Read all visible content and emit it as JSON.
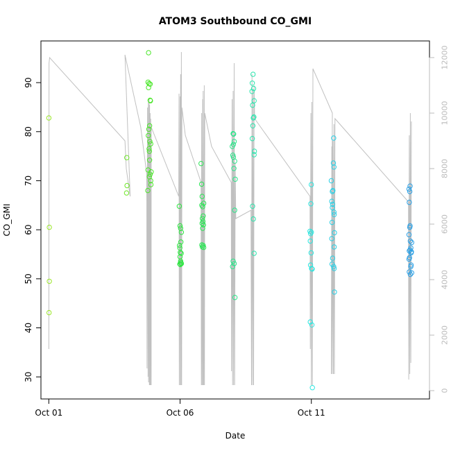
{
  "chart_data": {
    "type": "scatter",
    "title": "ATOM3 Southbound CO_GMI",
    "xlabel": "Date",
    "ylabel": "CO_GMI",
    "x_ticks": [
      "Oct 01",
      "Oct 06",
      "Oct 11"
    ],
    "y_ticks": [
      "30",
      "40",
      "50",
      "60",
      "70",
      "80",
      "90"
    ],
    "y2_ticks": [
      "0",
      "2000",
      "4000",
      "6000",
      "8000",
      "10000",
      "12000"
    ],
    "xlim": [
      -0.3,
      14.5
    ],
    "ylim": [
      25.5,
      98.5
    ],
    "y2lim": [
      -300,
      12600
    ],
    "grid": false,
    "colors": {
      "altitude_line": "#c0c0c0",
      "axis": "#000000",
      "right_axis": "#bbbbbb"
    },
    "points": [
      {
        "x": 0.0,
        "y": 82.8,
        "color": "#9be62a"
      },
      {
        "x": 0.02,
        "y": 60.5,
        "color": "#9be62a"
      },
      {
        "x": 0.02,
        "y": 49.5,
        "color": "#9be62a"
      },
      {
        "x": 0.01,
        "y": 43.1,
        "color": "#9be62a"
      },
      {
        "x": 2.97,
        "y": 74.7,
        "color": "#6fe62a"
      },
      {
        "x": 2.98,
        "y": 69.0,
        "color": "#6fe62a"
      },
      {
        "x": 2.96,
        "y": 67.5,
        "color": "#6fe62a"
      },
      {
        "x": 3.8,
        "y": 96.1,
        "color": "#4be62a"
      },
      {
        "x": 3.78,
        "y": 90.1,
        "color": "#4be62a"
      },
      {
        "x": 3.82,
        "y": 89.8,
        "color": "#4be62a"
      },
      {
        "x": 3.86,
        "y": 89.7,
        "color": "#4be62a"
      },
      {
        "x": 3.8,
        "y": 89.0,
        "color": "#4be62a"
      },
      {
        "x": 3.87,
        "y": 86.3,
        "color": "#4be62a"
      },
      {
        "x": 3.86,
        "y": 86.4,
        "color": "#4be62a"
      },
      {
        "x": 3.84,
        "y": 81.2,
        "color": "#4be62a"
      },
      {
        "x": 3.81,
        "y": 80.5,
        "color": "#4be62a"
      },
      {
        "x": 3.79,
        "y": 79.2,
        "color": "#4be62a"
      },
      {
        "x": 3.85,
        "y": 78.0,
        "color": "#4be62a"
      },
      {
        "x": 3.88,
        "y": 77.5,
        "color": "#4be62a"
      },
      {
        "x": 3.82,
        "y": 76.5,
        "color": "#4be62a"
      },
      {
        "x": 3.83,
        "y": 76.0,
        "color": "#4be62a"
      },
      {
        "x": 3.84,
        "y": 74.2,
        "color": "#4be62a"
      },
      {
        "x": 3.78,
        "y": 72.2,
        "color": "#4be62a"
      },
      {
        "x": 3.9,
        "y": 71.8,
        "color": "#4be62a"
      },
      {
        "x": 3.86,
        "y": 71.3,
        "color": "#4be62a"
      },
      {
        "x": 3.83,
        "y": 70.8,
        "color": "#4be62a"
      },
      {
        "x": 3.88,
        "y": 70.0,
        "color": "#4be62a"
      },
      {
        "x": 3.89,
        "y": 69.2,
        "color": "#4be62a"
      },
      {
        "x": 3.77,
        "y": 68.0,
        "color": "#4be62a"
      },
      {
        "x": 4.97,
        "y": 64.8,
        "color": "#2ae63e"
      },
      {
        "x": 5.0,
        "y": 60.8,
        "color": "#2ae63e"
      },
      {
        "x": 5.02,
        "y": 60.3,
        "color": "#2ae63e"
      },
      {
        "x": 5.05,
        "y": 59.5,
        "color": "#2ae63e"
      },
      {
        "x": 5.03,
        "y": 57.5,
        "color": "#2ae63e"
      },
      {
        "x": 4.98,
        "y": 56.8,
        "color": "#2ae63e"
      },
      {
        "x": 4.99,
        "y": 56.3,
        "color": "#2ae63e"
      },
      {
        "x": 5.01,
        "y": 55.4,
        "color": "#2ae63e"
      },
      {
        "x": 5.04,
        "y": 55.2,
        "color": "#2ae63e"
      },
      {
        "x": 5.0,
        "y": 54.5,
        "color": "#2ae63e"
      },
      {
        "x": 5.02,
        "y": 53.6,
        "color": "#2ae63e"
      },
      {
        "x": 5.03,
        "y": 53.3,
        "color": "#2ae63e"
      },
      {
        "x": 4.99,
        "y": 53.0,
        "color": "#2ae63e"
      },
      {
        "x": 5.01,
        "y": 52.9,
        "color": "#2ae63e"
      },
      {
        "x": 5.05,
        "y": 53.1,
        "color": "#2ae63e"
      },
      {
        "x": 5.8,
        "y": 73.5,
        "color": "#2ae654"
      },
      {
        "x": 5.82,
        "y": 69.3,
        "color": "#2ae654"
      },
      {
        "x": 5.84,
        "y": 66.8,
        "color": "#2ae654"
      },
      {
        "x": 5.9,
        "y": 65.4,
        "color": "#2ae654"
      },
      {
        "x": 5.83,
        "y": 65.0,
        "color": "#2ae654"
      },
      {
        "x": 5.86,
        "y": 64.7,
        "color": "#2ae654"
      },
      {
        "x": 5.88,
        "y": 62.8,
        "color": "#2ae654"
      },
      {
        "x": 5.85,
        "y": 62.3,
        "color": "#2ae654"
      },
      {
        "x": 5.87,
        "y": 61.7,
        "color": "#2ae654"
      },
      {
        "x": 5.84,
        "y": 61.3,
        "color": "#2ae654"
      },
      {
        "x": 5.89,
        "y": 61.0,
        "color": "#2ae654"
      },
      {
        "x": 5.86,
        "y": 60.3,
        "color": "#2ae654"
      },
      {
        "x": 5.83,
        "y": 56.9,
        "color": "#2ae654"
      },
      {
        "x": 5.85,
        "y": 56.5,
        "color": "#2ae654"
      },
      {
        "x": 5.88,
        "y": 56.8,
        "color": "#2ae654"
      },
      {
        "x": 5.9,
        "y": 56.4,
        "color": "#2ae654"
      },
      {
        "x": 7.02,
        "y": 79.6,
        "color": "#2ae68a"
      },
      {
        "x": 7.04,
        "y": 79.5,
        "color": "#2ae68a"
      },
      {
        "x": 7.06,
        "y": 78.0,
        "color": "#2ae68a"
      },
      {
        "x": 7.03,
        "y": 77.4,
        "color": "#2ae68a"
      },
      {
        "x": 6.99,
        "y": 77.0,
        "color": "#2ae68a"
      },
      {
        "x": 7.01,
        "y": 75.2,
        "color": "#2ae68a"
      },
      {
        "x": 7.03,
        "y": 74.8,
        "color": "#2ae68a"
      },
      {
        "x": 7.08,
        "y": 74.0,
        "color": "#2ae68a"
      },
      {
        "x": 7.05,
        "y": 72.5,
        "color": "#2ae68a"
      },
      {
        "x": 7.1,
        "y": 70.3,
        "color": "#2ae68a"
      },
      {
        "x": 7.08,
        "y": 64.0,
        "color": "#2ae68a"
      },
      {
        "x": 7.02,
        "y": 53.6,
        "color": "#2ae68a"
      },
      {
        "x": 7.06,
        "y": 53.1,
        "color": "#2ae68a"
      },
      {
        "x": 7.0,
        "y": 52.5,
        "color": "#2ae68a"
      },
      {
        "x": 7.09,
        "y": 46.2,
        "color": "#2ae68a"
      },
      {
        "x": 7.78,
        "y": 91.7,
        "color": "#2ae6ae"
      },
      {
        "x": 7.75,
        "y": 89.9,
        "color": "#2ae6ae"
      },
      {
        "x": 7.8,
        "y": 88.8,
        "color": "#2ae6ae"
      },
      {
        "x": 7.74,
        "y": 88.2,
        "color": "#2ae6ae"
      },
      {
        "x": 7.82,
        "y": 86.3,
        "color": "#2ae6ae"
      },
      {
        "x": 7.76,
        "y": 85.4,
        "color": "#2ae6ae"
      },
      {
        "x": 7.79,
        "y": 82.8,
        "color": "#2ae6ae"
      },
      {
        "x": 7.81,
        "y": 83.0,
        "color": "#2ae6ae"
      },
      {
        "x": 7.77,
        "y": 81.2,
        "color": "#2ae6ae"
      },
      {
        "x": 7.75,
        "y": 78.6,
        "color": "#2ae6ae"
      },
      {
        "x": 7.83,
        "y": 76.0,
        "color": "#2ae6ae"
      },
      {
        "x": 7.82,
        "y": 75.3,
        "color": "#2ae6ae"
      },
      {
        "x": 7.76,
        "y": 64.8,
        "color": "#2ae6ae"
      },
      {
        "x": 7.79,
        "y": 62.2,
        "color": "#2ae6ae"
      },
      {
        "x": 7.82,
        "y": 55.2,
        "color": "#2ae6ae"
      },
      {
        "x": 10.0,
        "y": 69.2,
        "color": "#2ae6e0"
      },
      {
        "x": 9.98,
        "y": 65.3,
        "color": "#2ae6e0"
      },
      {
        "x": 9.95,
        "y": 59.7,
        "color": "#2ae6e0"
      },
      {
        "x": 9.97,
        "y": 59.2,
        "color": "#2ae6e0"
      },
      {
        "x": 10.0,
        "y": 59.5,
        "color": "#2ae6e0"
      },
      {
        "x": 9.96,
        "y": 57.7,
        "color": "#2ae6e0"
      },
      {
        "x": 9.99,
        "y": 55.3,
        "color": "#2ae6e0"
      },
      {
        "x": 9.97,
        "y": 52.8,
        "color": "#2ae6e0"
      },
      {
        "x": 10.01,
        "y": 52.1,
        "color": "#2ae6e0"
      },
      {
        "x": 10.03,
        "y": 52.0,
        "color": "#2ae6e0"
      },
      {
        "x": 9.96,
        "y": 41.2,
        "color": "#2ae6e0"
      },
      {
        "x": 10.02,
        "y": 40.6,
        "color": "#2ae6e0"
      },
      {
        "x": 10.04,
        "y": 27.8,
        "color": "#2ae6e0"
      },
      {
        "x": 10.85,
        "y": 78.7,
        "color": "#2ad0e6"
      },
      {
        "x": 10.84,
        "y": 73.6,
        "color": "#2ad0e6"
      },
      {
        "x": 10.86,
        "y": 72.8,
        "color": "#2ad0e6"
      },
      {
        "x": 10.76,
        "y": 70.0,
        "color": "#2ad0e6"
      },
      {
        "x": 10.82,
        "y": 68.0,
        "color": "#2ad0e6"
      },
      {
        "x": 10.8,
        "y": 67.8,
        "color": "#2ad0e6"
      },
      {
        "x": 10.78,
        "y": 65.8,
        "color": "#2ad0e6"
      },
      {
        "x": 10.81,
        "y": 65.2,
        "color": "#2ad0e6"
      },
      {
        "x": 10.8,
        "y": 64.5,
        "color": "#2ad0e6"
      },
      {
        "x": 10.86,
        "y": 63.6,
        "color": "#2ad0e6"
      },
      {
        "x": 10.87,
        "y": 63.1,
        "color": "#2ad0e6"
      },
      {
        "x": 10.79,
        "y": 61.5,
        "color": "#2ad0e6"
      },
      {
        "x": 10.88,
        "y": 59.4,
        "color": "#2ad0e6"
      },
      {
        "x": 10.78,
        "y": 58.2,
        "color": "#2ad0e6"
      },
      {
        "x": 10.87,
        "y": 56.5,
        "color": "#2ad0e6"
      },
      {
        "x": 10.81,
        "y": 54.2,
        "color": "#2ad0e6"
      },
      {
        "x": 10.79,
        "y": 53.0,
        "color": "#2ad0e6"
      },
      {
        "x": 10.85,
        "y": 52.5,
        "color": "#2ad0e6"
      },
      {
        "x": 10.87,
        "y": 52.1,
        "color": "#2ad0e6"
      },
      {
        "x": 10.88,
        "y": 47.3,
        "color": "#2ad0e6"
      },
      {
        "x": 13.72,
        "y": 68.3,
        "color": "#2aa0e6"
      },
      {
        "x": 13.76,
        "y": 68.9,
        "color": "#2aa0e6"
      },
      {
        "x": 13.75,
        "y": 67.8,
        "color": "#2aa0e6"
      },
      {
        "x": 13.73,
        "y": 65.6,
        "color": "#2aa0e6"
      },
      {
        "x": 13.76,
        "y": 60.8,
        "color": "#2aa0e6"
      },
      {
        "x": 13.75,
        "y": 60.5,
        "color": "#2aa0e6"
      },
      {
        "x": 13.72,
        "y": 59.0,
        "color": "#2aa0e6"
      },
      {
        "x": 13.77,
        "y": 57.7,
        "color": "#2aa0e6"
      },
      {
        "x": 13.82,
        "y": 57.4,
        "color": "#2aa0e6"
      },
      {
        "x": 13.79,
        "y": 56.3,
        "color": "#2aa0e6"
      },
      {
        "x": 13.76,
        "y": 55.9,
        "color": "#2aa0e6"
      },
      {
        "x": 13.73,
        "y": 55.7,
        "color": "#2aa0e6"
      },
      {
        "x": 13.81,
        "y": 55.5,
        "color": "#2aa0e6"
      },
      {
        "x": 13.8,
        "y": 55.3,
        "color": "#2aa0e6"
      },
      {
        "x": 13.74,
        "y": 54.3,
        "color": "#2aa0e6"
      },
      {
        "x": 13.72,
        "y": 54.0,
        "color": "#2aa0e6"
      },
      {
        "x": 13.8,
        "y": 52.8,
        "color": "#2aa0e6"
      },
      {
        "x": 13.79,
        "y": 52.5,
        "color": "#2aa0e6"
      },
      {
        "x": 13.73,
        "y": 51.4,
        "color": "#2aa0e6"
      },
      {
        "x": 13.82,
        "y": 51.2,
        "color": "#2aa0e6"
      },
      {
        "x": 13.77,
        "y": 50.9,
        "color": "#2aa0e6"
      }
    ],
    "altitude_line": [
      [
        0.0,
        1500
      ],
      [
        0.01,
        11800
      ],
      [
        0.03,
        12000
      ],
      [
        2.9,
        9000
      ],
      [
        2.95,
        8000
      ],
      [
        3.1,
        7000
      ],
      [
        2.9,
        12100
      ],
      [
        3.5,
        9500
      ],
      [
        3.73,
        7800
      ],
      [
        3.74,
        800
      ],
      [
        3.76,
        10200
      ],
      [
        3.78,
        500
      ],
      [
        3.79,
        10400
      ],
      [
        3.8,
        300
      ],
      [
        3.82,
        10500
      ],
      [
        3.83,
        200
      ],
      [
        3.84,
        10300
      ],
      [
        3.85,
        200
      ],
      [
        3.86,
        10000
      ],
      [
        3.87,
        200
      ],
      [
        3.88,
        9800
      ],
      [
        3.9,
        200
      ],
      [
        3.9,
        9500
      ],
      [
        4.95,
        7000
      ],
      [
        4.96,
        10700
      ],
      [
        4.97,
        200
      ],
      [
        5.0,
        10600
      ],
      [
        5.01,
        200
      ],
      [
        5.02,
        11400
      ],
      [
        5.03,
        200
      ],
      [
        5.05,
        12200
      ],
      [
        5.06,
        200
      ],
      [
        5.07,
        10200
      ],
      [
        5.2,
        9200
      ],
      [
        5.8,
        7500
      ],
      [
        5.81,
        200
      ],
      [
        5.82,
        10000
      ],
      [
        5.84,
        200
      ],
      [
        5.86,
        10500
      ],
      [
        5.87,
        200
      ],
      [
        5.88,
        10800
      ],
      [
        5.9,
        200
      ],
      [
        5.92,
        11000
      ],
      [
        5.93,
        200
      ],
      [
        5.94,
        10000
      ],
      [
        6.2,
        8800
      ],
      [
        6.95,
        7500
      ],
      [
        6.96,
        700
      ],
      [
        6.98,
        10500
      ],
      [
        7.0,
        200
      ],
      [
        7.02,
        10800
      ],
      [
        7.04,
        200
      ],
      [
        7.06,
        11800
      ],
      [
        7.08,
        200
      ],
      [
        7.1,
        8200
      ],
      [
        7.12,
        6200
      ],
      [
        7.7,
        6500
      ],
      [
        7.72,
        200
      ],
      [
        7.74,
        11400
      ],
      [
        7.76,
        200
      ],
      [
        7.78,
        10800
      ],
      [
        7.8,
        200
      ],
      [
        7.82,
        11000
      ],
      [
        7.84,
        9800
      ],
      [
        9.95,
        7000
      ],
      [
        9.96,
        1500
      ],
      [
        9.98,
        10000
      ],
      [
        10.0,
        200
      ],
      [
        10.02,
        10400
      ],
      [
        10.04,
        200
      ],
      [
        10.06,
        11600
      ],
      [
        10.8,
        10000
      ],
      [
        10.76,
        600
      ],
      [
        10.78,
        8800
      ],
      [
        10.8,
        600
      ],
      [
        10.82,
        9000
      ],
      [
        10.84,
        600
      ],
      [
        10.86,
        9600
      ],
      [
        10.88,
        600
      ],
      [
        10.9,
        9800
      ],
      [
        13.7,
        6800
      ],
      [
        13.71,
        400
      ],
      [
        13.73,
        9200
      ],
      [
        13.75,
        600
      ],
      [
        13.77,
        10000
      ],
      [
        13.79,
        1000
      ],
      [
        13.81,
        9700
      ]
    ]
  }
}
